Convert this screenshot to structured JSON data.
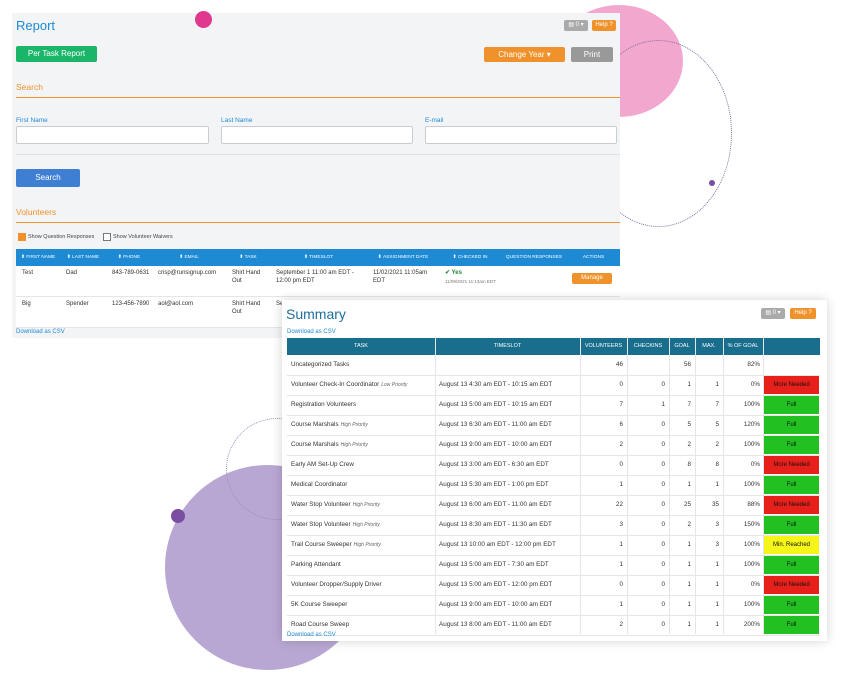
{
  "report": {
    "title": "Report",
    "view_toggle": "0",
    "help": "Help",
    "per_task_btn": "Per Task Report",
    "change_year_btn": "Change Year",
    "print_btn": "Print",
    "search_section": "Search",
    "first_name_label": "First Name",
    "last_name_label": "Last Name",
    "email_label": "E-mail",
    "search_btn": "Search",
    "volunteers_section": "Volunteers",
    "show_question_responses": "Show Question Responses",
    "show_volunteer_waivers": "Show Volunteer Waivers",
    "columns": [
      "FIRST NAME",
      "LAST NAME",
      "PHONE",
      "EMAIL",
      "TASK",
      "TIMESLOT",
      "ASSIGNMENT DATE",
      "CHECKED IN",
      "QUESTION RESPONSES",
      "ACTIONS"
    ],
    "rows": [
      {
        "first": "Test",
        "last": "Dad",
        "phone": "843-789-0631",
        "email": "crisp@runsignup.com",
        "task": "Shirt Hand Out",
        "timeslot": "September 1 11:00 am EDT - 12:00 pm EDT",
        "assignment_date": "11/02/2021 11:05am EDT",
        "checked_in": "✔ Yes",
        "checked_in_time": "11/09/2021 11:13am EDT",
        "action": "Manage"
      },
      {
        "first": "Big",
        "last": "Spender",
        "phone": "123-456-7890",
        "email": "aol@aol.com",
        "task": "Shirt Hand Out",
        "timeslot": "Septe",
        "assignment_date": "",
        "checked_in": "",
        "checked_in_time": "",
        "action": ""
      }
    ],
    "download_csv": "Download as CSV"
  },
  "summary": {
    "title": "Summary",
    "view_toggle": "0",
    "help": "Help",
    "download_csv_top": "Download as CSV",
    "download_csv_bottom": "Download as CSV",
    "columns": [
      "TASK",
      "TIMESLOT",
      "VOLUNTEERS",
      "CHECKINS",
      "GOAL",
      "MAX.",
      "% OF GOAL",
      ""
    ],
    "rows": [
      {
        "task": "Uncategorized Tasks",
        "priority": "",
        "timeslot": "",
        "volunteers": "46",
        "checkins": "",
        "goal": "56",
        "max": "",
        "pct": "82%",
        "status": "",
        "status_color": ""
      },
      {
        "task": "Volunteer Check-In Coordinator",
        "priority": "Low Priority",
        "timeslot": "August 13 4:30 am EDT - 10:15 am EDT",
        "volunteers": "0",
        "checkins": "0",
        "goal": "1",
        "max": "1",
        "pct": "0%",
        "status": "More Needed",
        "status_color": "#e8201c"
      },
      {
        "task": "Registration Volunteers",
        "priority": "",
        "timeslot": "August 13 5:00 am EDT - 10:15 am EDT",
        "volunteers": "7",
        "checkins": "1",
        "goal": "7",
        "max": "7",
        "pct": "100%",
        "status": "Full",
        "status_color": "#22c021"
      },
      {
        "task": "Course Marshals",
        "priority": "High Priority",
        "timeslot": "August 13 6:30 am EDT - 11:00 am EDT",
        "volunteers": "6",
        "checkins": "0",
        "goal": "5",
        "max": "5",
        "pct": "120%",
        "status": "Full",
        "status_color": "#22c021"
      },
      {
        "task": "Course Marshals",
        "priority": "High Priority",
        "timeslot": "August 13 9:00 am EDT - 10:00 am EDT",
        "volunteers": "2",
        "checkins": "0",
        "goal": "2",
        "max": "2",
        "pct": "100%",
        "status": "Full",
        "status_color": "#22c021"
      },
      {
        "task": "Early AM Set-Up Crew",
        "priority": "",
        "timeslot": "August 13 3:00 am EDT - 6:30 am EDT",
        "volunteers": "0",
        "checkins": "0",
        "goal": "8",
        "max": "8",
        "pct": "0%",
        "status": "More Needed",
        "status_color": "#e8201c"
      },
      {
        "task": "Medical Coordinator",
        "priority": "",
        "timeslot": "August 13 5:30 am EDT - 1:00 pm EDT",
        "volunteers": "1",
        "checkins": "0",
        "goal": "1",
        "max": "1",
        "pct": "100%",
        "status": "Full",
        "status_color": "#22c021"
      },
      {
        "task": "Water Stop Volunteer",
        "priority": "High Priority",
        "timeslot": "August 13 6:00 am EDT - 11:00 am EDT",
        "volunteers": "22",
        "checkins": "0",
        "goal": "25",
        "max": "35",
        "pct": "88%",
        "status": "More Needed",
        "status_color": "#e8201c"
      },
      {
        "task": "Water Stop Volunteer",
        "priority": "High Priority",
        "timeslot": "August 13 8:30 am EDT - 11:30 am EDT",
        "volunteers": "3",
        "checkins": "0",
        "goal": "2",
        "max": "3",
        "pct": "150%",
        "status": "Full",
        "status_color": "#22c021"
      },
      {
        "task": "Trail Course Sweeper",
        "priority": "High Priority",
        "timeslot": "August 13 10:00 am EDT - 12:00 pm EDT",
        "volunteers": "1",
        "checkins": "0",
        "goal": "1",
        "max": "3",
        "pct": "100%",
        "status": "Min. Reached",
        "status_color": "#f5f51a"
      },
      {
        "task": "Parking Attendant",
        "priority": "",
        "timeslot": "August 13 5:00 am EDT - 7:30 am EDT",
        "volunteers": "1",
        "checkins": "0",
        "goal": "1",
        "max": "1",
        "pct": "100%",
        "status": "Full",
        "status_color": "#22c021"
      },
      {
        "task": "Volunteer Dropper/Supply Driver",
        "priority": "",
        "timeslot": "August 13 5:00 am EDT - 12:00 pm EDT",
        "volunteers": "0",
        "checkins": "0",
        "goal": "1",
        "max": "1",
        "pct": "0%",
        "status": "More Needed",
        "status_color": "#e8201c"
      },
      {
        "task": "5K Course Sweeper",
        "priority": "",
        "timeslot": "August 13 9:00 am EDT - 10:00 am EDT",
        "volunteers": "1",
        "checkins": "0",
        "goal": "1",
        "max": "1",
        "pct": "100%",
        "status": "Full",
        "status_color": "#22c021"
      },
      {
        "task": "Road Course Sweep",
        "priority": "",
        "timeslot": "August 13 8:00 am EDT - 11:00 am EDT",
        "volunteers": "2",
        "checkins": "0",
        "goal": "1",
        "max": "1",
        "pct": "200%",
        "status": "Full",
        "status_color": "#22c021"
      }
    ]
  },
  "colors": {
    "accent_orange": "#f0922b",
    "accent_blue": "#1e8ad4",
    "header_teal": "#1a6e8d",
    "full_green": "#22c021",
    "needed_red": "#e8201c",
    "min_yellow": "#f5f51a"
  }
}
